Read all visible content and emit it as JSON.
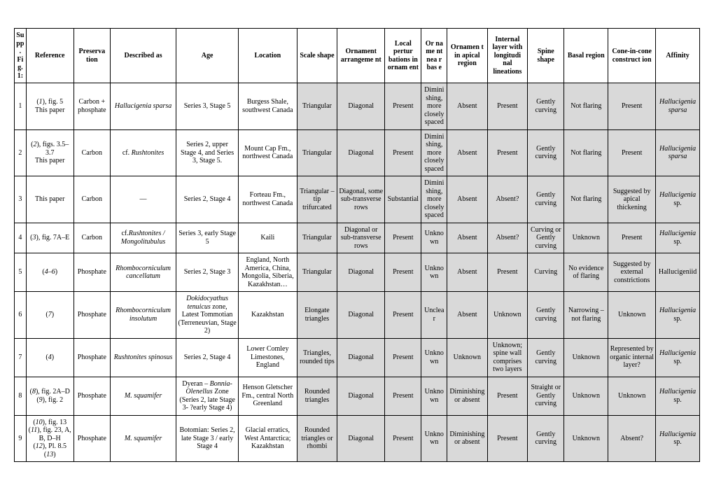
{
  "headers": {
    "idx": "Supp. Fig. 1:",
    "ref": "Reference",
    "pres": "Preserva tion",
    "desc": "Described as",
    "age": "Age",
    "loc": "Location",
    "sshape": "Scale shape",
    "orn": "Ornament arrangeme nt",
    "lpert": "Local pertur bations in ornam ent",
    "ornnb": "Or na me nt nea r bas e",
    "ornap": "Ornamen t in apical region",
    "intl": "Internal layer with longitudi nal lineations",
    "spine": "Spine shape",
    "basal": "Basal region",
    "cone": "Cone-in-cone construct ion",
    "aff": "Affinity"
  },
  "rows": [
    {
      "idx": "1",
      "ref_html": "(<i>1</i>), fig. 5<br>This paper",
      "pres": "Carbon + phosphate",
      "desc_html": "<i>Hallucigenia sparsa</i>",
      "age": "Series 3, Stage 5",
      "loc": "Burgess Shale, southwest Canada",
      "sshape": "Triangular",
      "orn": "Diagonal",
      "lpert": "Present",
      "ornnb": "Dimini shing, more closely spaced",
      "ornap": "Absent",
      "intl": "Present",
      "spine": "Gently curving",
      "basal": "Not flaring",
      "cone": "Present",
      "aff_html": "<i>Hallucigenia sparsa</i>"
    },
    {
      "idx": "2",
      "ref_html": "(<i>2</i>), figs. 3.5–3.7<br>This paper",
      "pres": "Carbon",
      "desc_html": "cf. <i>Rushtonites</i>",
      "age": "Series 2, upper Stage 4, and Series 3, Stage 5.",
      "loc": "Mount Cap Fm., northwest Canada",
      "sshape": "Triangular",
      "orn": "Diagonal",
      "lpert": "Present",
      "ornnb": "Dimini shing, more closely spaced",
      "ornap": "Absent",
      "intl": "Present",
      "spine": "Gently curving",
      "basal": "Not flaring",
      "cone": "Present",
      "aff_html": "<i>Hallucigenia sparsa</i>"
    },
    {
      "idx": "3",
      "ref_html": "This paper",
      "pres": "Carbon",
      "desc_html": "—",
      "age": "Series 2, Stage 4",
      "loc": "Forteau Fm., northwest Canada",
      "sshape": "Triangular – tip trifurcated",
      "orn": "Diagonal, some sub-transverse rows",
      "lpert": "Substantial",
      "ornnb": "Dimini shing, more closely spaced",
      "ornap": "Absent",
      "intl": "Absent?",
      "spine": "Gently curving",
      "basal": "Not flaring",
      "cone": "Suggested by apical thickening",
      "aff_html": "<i>Hallucigenia</i> sp."
    },
    {
      "idx": "4",
      "ref_html": "(<i>3</i>), fig. 7A–E",
      "pres": "Carbon",
      "desc_html": "cf.<i>Rushtonites / Mongolitubulus</i>",
      "age": "Series 3, early Stage 5",
      "loc": "Kaili",
      "sshape": "Triangular",
      "orn": "Diagonal or sub-transverse rows",
      "lpert": "Present",
      "ornnb": "Unkno wn",
      "ornap": "Absent",
      "intl": "Absent?",
      "spine": "Curving or Gently curving",
      "basal": "Unknown",
      "cone": "Present",
      "aff_html": "<i>Hallucigenia</i> sp."
    },
    {
      "idx": "5",
      "ref_html": "(<i>4</i>–<i>6</i>)",
      "pres": "Phosphate",
      "desc_html": "<i>Rhombocorniculum cancellatum</i>",
      "age": "Series 2, Stage 3",
      "loc": "England, North America, China, Mongolia, Siberia, Kazakhstan…",
      "sshape": "Triangular",
      "orn": "Diagonal",
      "lpert": "Present",
      "ornnb": "Unkno wn",
      "ornap": "Absent",
      "intl": "Present",
      "spine": "Curving",
      "basal": "No evidence of flaring",
      "cone": "Suggested by external constrictions",
      "aff_html": "Hallucigeniid"
    },
    {
      "idx": "6",
      "ref_html": "(<i>7</i>)",
      "pres": "Phosphate",
      "desc_html": "<i>Rhombocorniculum insolutum</i>",
      "age_html": "<i>Dokidocyathus tenuicus</i> zone, Latest Tommotian (Terreneuvian, Stage 2)",
      "loc": "Kazakhstan",
      "sshape": "Elongate triangles",
      "orn": "Diagonal",
      "lpert": "Present",
      "ornnb": "Unclea r",
      "ornap": "Absent",
      "intl": "Unknown",
      "spine": "Gently curving",
      "basal": "Narrowing – not flaring",
      "cone": "Unknown",
      "aff_html": "<i>Hallucigenia</i> sp."
    },
    {
      "idx": "7",
      "ref_html": "(<i>4</i>)",
      "pres": "Phosphate",
      "desc_html": "<i>Rushtonites spinosus</i>",
      "age": "Series 2, Stage 4",
      "loc": "Lower Comley Limestones, England",
      "sshape": "Triangles, rounded tips",
      "orn": "Diagonal",
      "lpert": "Present",
      "ornnb": "Unkno wn",
      "ornap": "Unknown",
      "intl": "Unknown; spine wall comprises two layers",
      "spine": "Gently curving",
      "basal": "Unknown",
      "cone": "Represented by organic internal layer?",
      "aff_html": "<i>Hallucigenia</i> sp."
    },
    {
      "idx": "8",
      "ref_html": "(<i>8</i>), fig. 2A–D<br>(<i>9</i>), fig. 2",
      "pres": "Phosphate",
      "desc_html": "<i>M. squamifer</i>",
      "age_html": "Dyeran – <i>Bonnia-Olenellus</i> Zone (Series 2, late Stage 3- ?early Stage 4)",
      "loc": "Henson Gletscher Fm., central North Greenland",
      "sshape": "Rounded triangles",
      "orn": "Diagonal",
      "lpert": "Present",
      "ornnb": "Unkno wn",
      "ornap": "Diminishing or absent",
      "intl": "Present",
      "spine": "Straight or Gently curving",
      "basal": "Unknown",
      "cone": "Unknown",
      "aff_html": "<i>Hallucigenia</i> sp."
    },
    {
      "idx": "9",
      "ref_html": "(<i>10</i>), fig. 13<br>(<i>11</i>), fig. 23, A, B, D–H<br>(<i>12</i>), Pl. 8.5<br>(<i>13</i>)",
      "pres": "Phosphate",
      "desc_html": "<i>M. squamifer</i>",
      "age": "Botomian: Series 2, late Stage 3 / early Stage 4",
      "loc": "Glacial erratics, West Antarctica; Kazakhstan",
      "sshape": "Rounded triangles or rhombi",
      "orn": "Diagonal",
      "lpert": "Present",
      "ornnb": "Unkno wn",
      "ornap": "Diminishing or absent",
      "intl": "Present",
      "spine": "Gently curving",
      "basal": "Unknown",
      "cone": "Absent?",
      "aff_html": "<i>Hallucigenia</i> sp."
    }
  ],
  "shadedCols": [
    "sshape",
    "orn",
    "lpert",
    "ornnb",
    "ornap",
    "intl",
    "spine",
    "basal",
    "cone",
    "aff"
  ]
}
